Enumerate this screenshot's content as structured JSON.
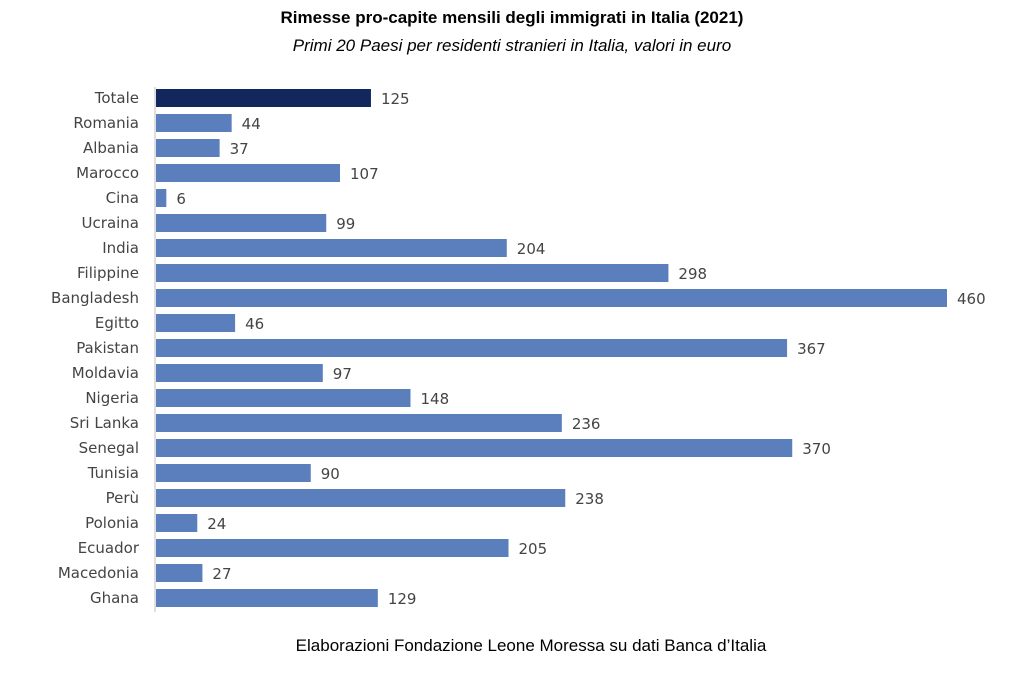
{
  "chart_data": {
    "type": "bar",
    "orientation": "horizontal",
    "title": "Rimesse pro-capite mensili degli immigrati in Italia (2021)",
    "subtitle": "Primi 20 Paesi per residenti stranieri in Italia, valori in euro",
    "categories": [
      "Totale",
      "Romania",
      "Albania",
      "Marocco",
      "Cina",
      "Ucraina",
      "India",
      "Filippine",
      "Bangladesh",
      "Egitto",
      "Pakistan",
      "Moldavia",
      "Nigeria",
      "Sri Lanka",
      "Senegal",
      "Tunisia",
      "Perù",
      "Polonia",
      "Ecuador",
      "Macedonia",
      "Ghana"
    ],
    "values": [
      125,
      44,
      37,
      107,
      6,
      99,
      204,
      298,
      460,
      46,
      367,
      97,
      148,
      236,
      370,
      90,
      238,
      24,
      205,
      27,
      129
    ],
    "highlight": "Totale",
    "colors": {
      "bar": "#5b7fbd",
      "highlight": "#12275e",
      "axis": "#bfbfbf"
    },
    "xlim": [
      0,
      460
    ],
    "grid": false,
    "legend": "none",
    "data_labels": true
  },
  "footer": {
    "source": "Elaborazioni Fondazione Leone Moressa su dati Banca d’Italia"
  }
}
